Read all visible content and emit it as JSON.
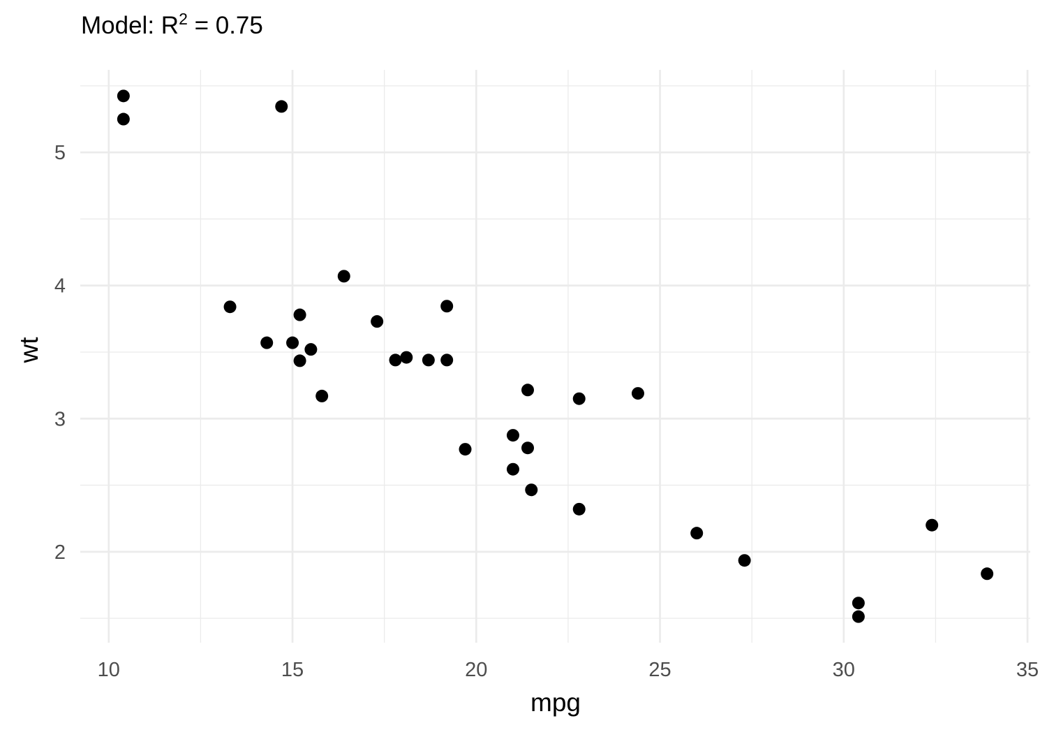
{
  "chart_data": {
    "type": "scatter",
    "title": "Model: R",
    "title_superscript": "2",
    "title_suffix": " = 0.75",
    "xlabel": "mpg",
    "ylabel": "wt",
    "xlim": [
      9.225,
      35.075
    ],
    "ylim": [
      1.317,
      5.62
    ],
    "xticks": [
      10,
      15,
      20,
      25,
      30,
      35
    ],
    "xtick_labels": [
      "10",
      "15",
      "20",
      "25",
      "30",
      "35"
    ],
    "yticks": [
      2,
      3,
      4,
      5
    ],
    "ytick_labels": [
      "2",
      "3",
      "4",
      "5"
    ],
    "x_minor": [
      12.5,
      17.5,
      22.5,
      27.5,
      32.5
    ],
    "y_minor": [
      1.5,
      2.5,
      3.5,
      4.5,
      5.5
    ],
    "grid": true,
    "point_color": "#000000",
    "grid_color": "#ebebeb",
    "x": [
      21.0,
      21.0,
      22.8,
      21.4,
      18.7,
      18.1,
      14.3,
      24.4,
      22.8,
      19.2,
      17.8,
      16.4,
      17.3,
      15.2,
      10.4,
      10.4,
      14.7,
      32.4,
      30.4,
      33.9,
      21.5,
      15.5,
      15.2,
      13.3,
      19.2,
      27.3,
      26.0,
      30.4,
      15.8,
      19.7,
      15.0,
      21.4
    ],
    "y": [
      2.62,
      2.875,
      2.32,
      3.215,
      3.44,
      3.46,
      3.57,
      3.19,
      3.15,
      3.44,
      3.44,
      4.07,
      3.73,
      3.78,
      5.25,
      5.424,
      5.345,
      2.2,
      1.615,
      1.835,
      2.465,
      3.52,
      3.435,
      3.84,
      3.845,
      1.935,
      2.14,
      1.513,
      3.17,
      2.77,
      3.57,
      2.78
    ]
  }
}
